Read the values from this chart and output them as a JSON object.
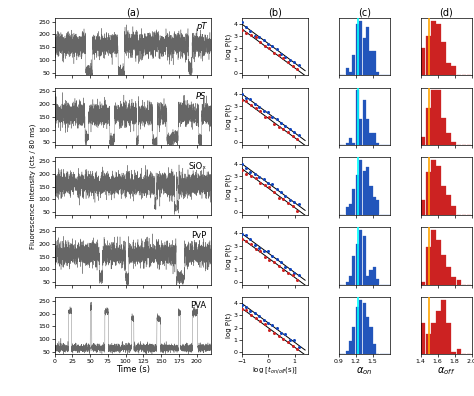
{
  "row_labels": [
    "pT",
    "PS",
    "SiOₓ",
    "PvP",
    "PVA"
  ],
  "panel_labels": [
    "(a)",
    "(b)",
    "(c)",
    "(d)"
  ],
  "ylabel_a": "Fluorescence Intensity (cts / 80 ms)",
  "xlabel_a": "Time (s)",
  "xlabel_b": "log [$t_{on/off}$(s)]",
  "xlabel_c": "$\\alpha_{on}$",
  "xlabel_d": "$\\alpha_{off}$",
  "ylabel_b": "log P(t)",
  "cyan_line_x": 1.25,
  "orange_line_x": 1.5,
  "trace_color": "#555555",
  "blue_color": "#1144bb",
  "red_color": "#cc2222",
  "blue_hist_color": "#2255bb",
  "red_hist_color": "#cc2222",
  "on_slope": -1.6,
  "off_slope": -1.6,
  "on_intercept": 4.0,
  "off_intercept": 3.6,
  "alpha_on_mean": 1.32,
  "alpha_on_std": 0.12,
  "alpha_off_mean": 1.58,
  "alpha_off_std": 0.1,
  "alpha_on_bins": [
    0.9,
    0.96,
    1.02,
    1.08,
    1.14,
    1.2,
    1.26,
    1.32,
    1.38,
    1.44,
    1.5,
    1.56,
    1.62,
    1.68,
    1.74,
    1.8
  ],
  "alpha_off_bins": [
    1.4,
    1.46,
    1.52,
    1.58,
    1.64,
    1.7,
    1.76,
    1.82,
    1.88,
    1.94,
    2.0
  ],
  "ylim_a": [
    40,
    265
  ],
  "yticks_a": [
    50,
    100,
    150,
    200,
    250
  ],
  "xlim_b": [
    -1.0,
    1.5
  ],
  "ylim_b": [
    -0.2,
    4.5
  ],
  "yticks_b": [
    0,
    1,
    2,
    3,
    4
  ],
  "xticks_b": [
    -1,
    0,
    1
  ],
  "xlim_c": [
    0.9,
    1.8
  ],
  "xticks_c": [
    0.9,
    1.2,
    1.5
  ],
  "xlim_d": [
    1.4,
    2.0
  ],
  "xticks_d": [
    1.4,
    1.6,
    1.8,
    2.0
  ]
}
